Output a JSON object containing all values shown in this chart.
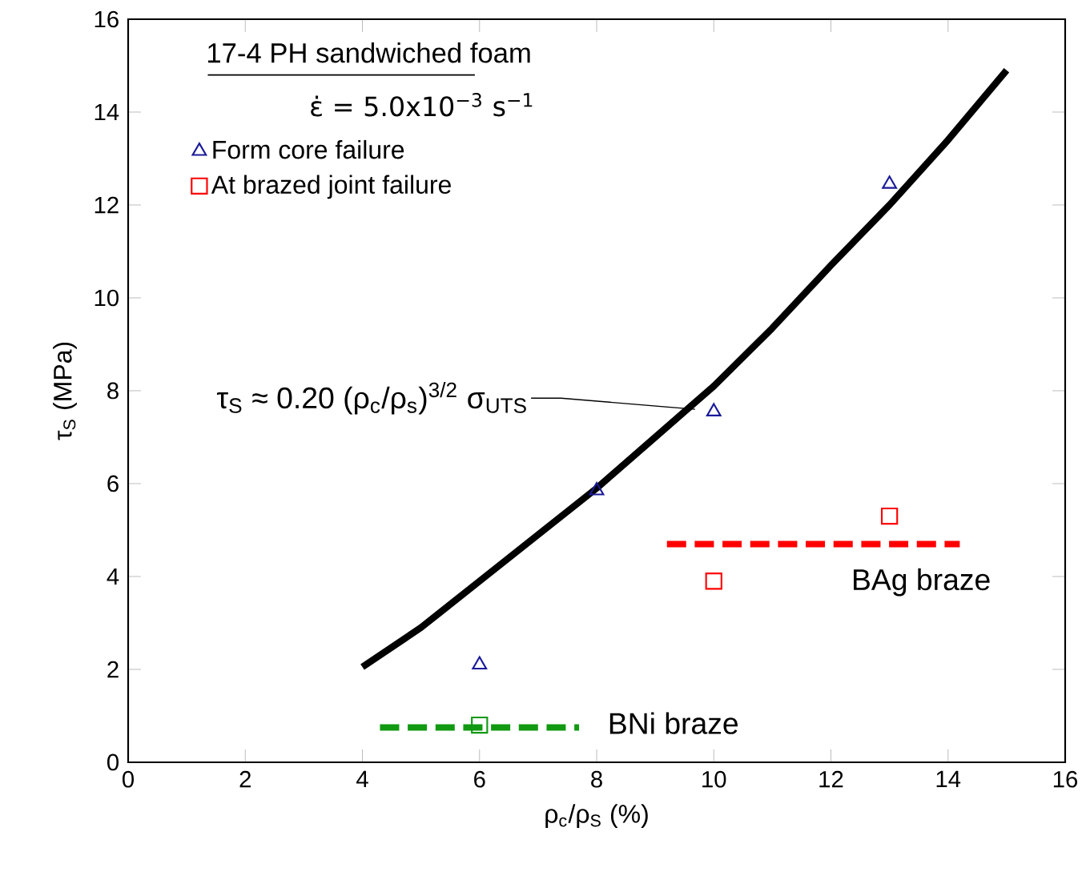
{
  "chart_data": {
    "type": "scatter",
    "xlabel": "ρ$_{c}$/ρ$_{S}$ (%)",
    "ylabel": "τ$_{S}$ (MPa)",
    "xlim": [
      0,
      16
    ],
    "ylim": [
      0,
      16
    ],
    "xticks": [
      0,
      2,
      4,
      6,
      8,
      10,
      12,
      14,
      16
    ],
    "yticks": [
      0,
      2,
      4,
      6,
      8,
      10,
      12,
      14,
      16
    ],
    "legend": "top left",
    "series": [
      {
        "type": "line",
        "color": "#000000",
        "marker": "none",
        "line_style": "solid",
        "x": [
          4,
          5,
          6,
          7,
          8,
          9,
          10,
          11,
          12,
          13,
          14,
          15
        ],
        "values": [
          2.05,
          2.9,
          3.9,
          4.9,
          5.9,
          7.0,
          8.1,
          9.35,
          10.7,
          12.0,
          13.4,
          14.9
        ]
      },
      {
        "type": "line",
        "color": "#ff0000",
        "marker": "none",
        "line_style": "dashed",
        "x": [
          9.2,
          14.2
        ],
        "values": [
          4.7,
          4.7
        ]
      },
      {
        "type": "line",
        "color": "#119911",
        "marker": "none",
        "line_style": "dashed",
        "x": [
          4.3,
          7.7
        ],
        "values": [
          0.75,
          0.75
        ]
      },
      {
        "name": "Form core failure",
        "color": "#1a1a99",
        "marker": "triangle",
        "x": [
          6,
          8,
          10,
          13
        ],
        "values": [
          2.1,
          5.85,
          7.55,
          12.45
        ]
      },
      {
        "name": "At brazed joint failure",
        "color": "#ff0000",
        "marker": "square",
        "x": [
          10,
          13
        ],
        "values": [
          3.9,
          5.3
        ]
      },
      {
        "color": "#119911",
        "marker": "square",
        "x": [
          6
        ],
        "values": [
          0.8
        ]
      }
    ],
    "annotations": [
      "17-4 PH sandwiched foam",
      "ε̇ = 5.0x10$^{−3}$ s$^{−1}$",
      "τ$_{S}$ ≈ 0.20 (ρ$_{c}$/ρ$_{s}$)$^{3/2}$ σ$_{UTS}$",
      {
        "text": "BAg braze",
        "x": 14.2,
        "y": 4.7
      },
      {
        "text": "BNi braze",
        "x": 7.7,
        "y": 0.75
      }
    ]
  }
}
